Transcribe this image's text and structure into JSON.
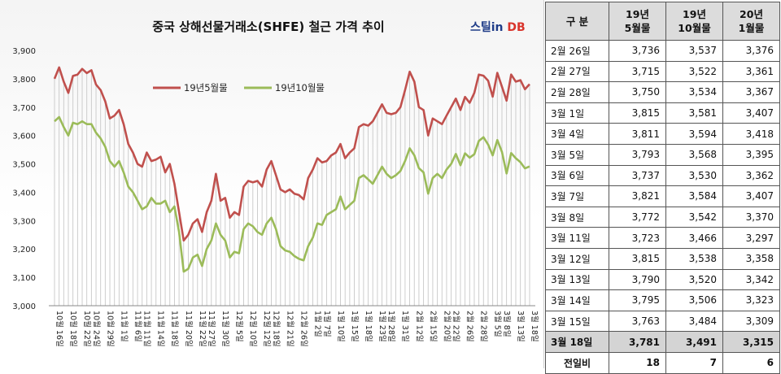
{
  "chart_data": {
    "type": "line",
    "title": "중국 상해선물거래소(SHFE) 철근 가격 추이",
    "ylim": [
      3000,
      3900
    ],
    "yticks": [
      "3,000",
      "3,100",
      "3,200",
      "3,300",
      "3,400",
      "3,500",
      "3,600",
      "3,700",
      "3,800",
      "3,900"
    ],
    "grid": false,
    "legend_position": "top-left",
    "x_labels": [
      "10월 16일",
      "10월 18일",
      "10월 22일",
      "10월 24일",
      "10월 29일",
      "11월 1일",
      "11월 6일",
      "11월 11일",
      "11월 14일",
      "11월 18일",
      "11월 20일",
      "11월 22일",
      "11월 27일",
      "11월 30일",
      "12월 5일",
      "12월 10일",
      "12월 12일",
      "12월 18일",
      "12월 21일",
      "12월 26일",
      "1월 2일",
      "1월 7일",
      "1월 10일",
      "1월 15일",
      "1월 18일",
      "1월 23일",
      "1월 28일",
      "1월 31일",
      "2월 12일",
      "2월 15일",
      "2월 20일",
      "2월 22일",
      "2월 26일",
      "2월 28일",
      "3월 5일",
      "3월 8일",
      "3월 13일",
      "3월 18일"
    ],
    "series": [
      {
        "name": "19년5월물",
        "color": "#c0504d",
        "values": [
          3800,
          3840,
          3790,
          3750,
          3810,
          3815,
          3835,
          3820,
          3830,
          3780,
          3760,
          3720,
          3660,
          3670,
          3690,
          3640,
          3570,
          3540,
          3500,
          3490,
          3540,
          3510,
          3515,
          3525,
          3470,
          3500,
          3430,
          3330,
          3230,
          3250,
          3290,
          3305,
          3260,
          3330,
          3370,
          3465,
          3370,
          3380,
          3310,
          3330,
          3320,
          3420,
          3440,
          3435,
          3440,
          3420,
          3480,
          3510,
          3460,
          3410,
          3400,
          3410,
          3395,
          3390,
          3375,
          3450,
          3480,
          3520,
          3505,
          3510,
          3530,
          3540,
          3570,
          3520,
          3540,
          3555,
          3630,
          3640,
          3635,
          3650,
          3680,
          3710,
          3680,
          3675,
          3680,
          3700,
          3760,
          3825,
          3790,
          3700,
          3690,
          3600,
          3660,
          3650,
          3640,
          3670,
          3700,
          3730,
          3690,
          3736,
          3715,
          3750,
          3815,
          3811,
          3793,
          3737,
          3821,
          3772,
          3723,
          3815,
          3790,
          3795,
          3763,
          3781
        ]
      },
      {
        "name": "19년10월물",
        "color": "#9bbb59",
        "values": [
          3650,
          3665,
          3630,
          3600,
          3645,
          3640,
          3650,
          3640,
          3640,
          3610,
          3590,
          3560,
          3510,
          3490,
          3510,
          3470,
          3420,
          3400,
          3370,
          3340,
          3350,
          3380,
          3360,
          3360,
          3370,
          3330,
          3350,
          3260,
          3120,
          3130,
          3170,
          3180,
          3140,
          3200,
          3230,
          3290,
          3250,
          3230,
          3170,
          3190,
          3185,
          3270,
          3290,
          3280,
          3260,
          3250,
          3290,
          3310,
          3270,
          3210,
          3195,
          3190,
          3175,
          3165,
          3160,
          3210,
          3240,
          3290,
          3285,
          3320,
          3330,
          3340,
          3385,
          3340,
          3355,
          3370,
          3450,
          3460,
          3445,
          3430,
          3460,
          3490,
          3465,
          3450,
          3460,
          3475,
          3510,
          3555,
          3530,
          3485,
          3470,
          3395,
          3450,
          3465,
          3450,
          3480,
          3500,
          3535,
          3495,
          3537,
          3522,
          3534,
          3581,
          3594,
          3568,
          3530,
          3584,
          3542,
          3466,
          3538,
          3520,
          3506,
          3484,
          3491
        ]
      }
    ]
  },
  "brand": {
    "text": "스틸in DB",
    "color_main": "#1f3c88",
    "color_accent": "#d9342b"
  },
  "table": {
    "headers": [
      "구  분",
      "19년\n5월물",
      "19년\n10월물",
      "20년\n1월물"
    ],
    "rows": [
      [
        "2월 26일",
        "3,736",
        "3,537",
        "3,376"
      ],
      [
        "2월 27일",
        "3,715",
        "3,522",
        "3,361"
      ],
      [
        "2월 28일",
        "3,750",
        "3,534",
        "3,367"
      ],
      [
        "3월  1일",
        "3,815",
        "3,581",
        "3,407"
      ],
      [
        "3월  4일",
        "3,811",
        "3,594",
        "3,418"
      ],
      [
        "3월  5일",
        "3,793",
        "3,568",
        "3,395"
      ],
      [
        "3월  6일",
        "3,737",
        "3,530",
        "3,362"
      ],
      [
        "3월  7일",
        "3,821",
        "3,584",
        "3,407"
      ],
      [
        "3월  8일",
        "3,772",
        "3,542",
        "3,370"
      ],
      [
        "3월 11일",
        "3,723",
        "3,466",
        "3,297"
      ],
      [
        "3월 12일",
        "3,815",
        "3,538",
        "3,358"
      ],
      [
        "3월 13일",
        "3,790",
        "3,520",
        "3,342"
      ],
      [
        "3월 14일",
        "3,795",
        "3,506",
        "3,323"
      ],
      [
        "3월 15일",
        "3,763",
        "3,484",
        "3,309"
      ]
    ],
    "today": [
      "3월 18일",
      "3,781",
      "3,491",
      "3,315"
    ],
    "diff": [
      "전일비",
      "18",
      "7",
      "6"
    ]
  }
}
